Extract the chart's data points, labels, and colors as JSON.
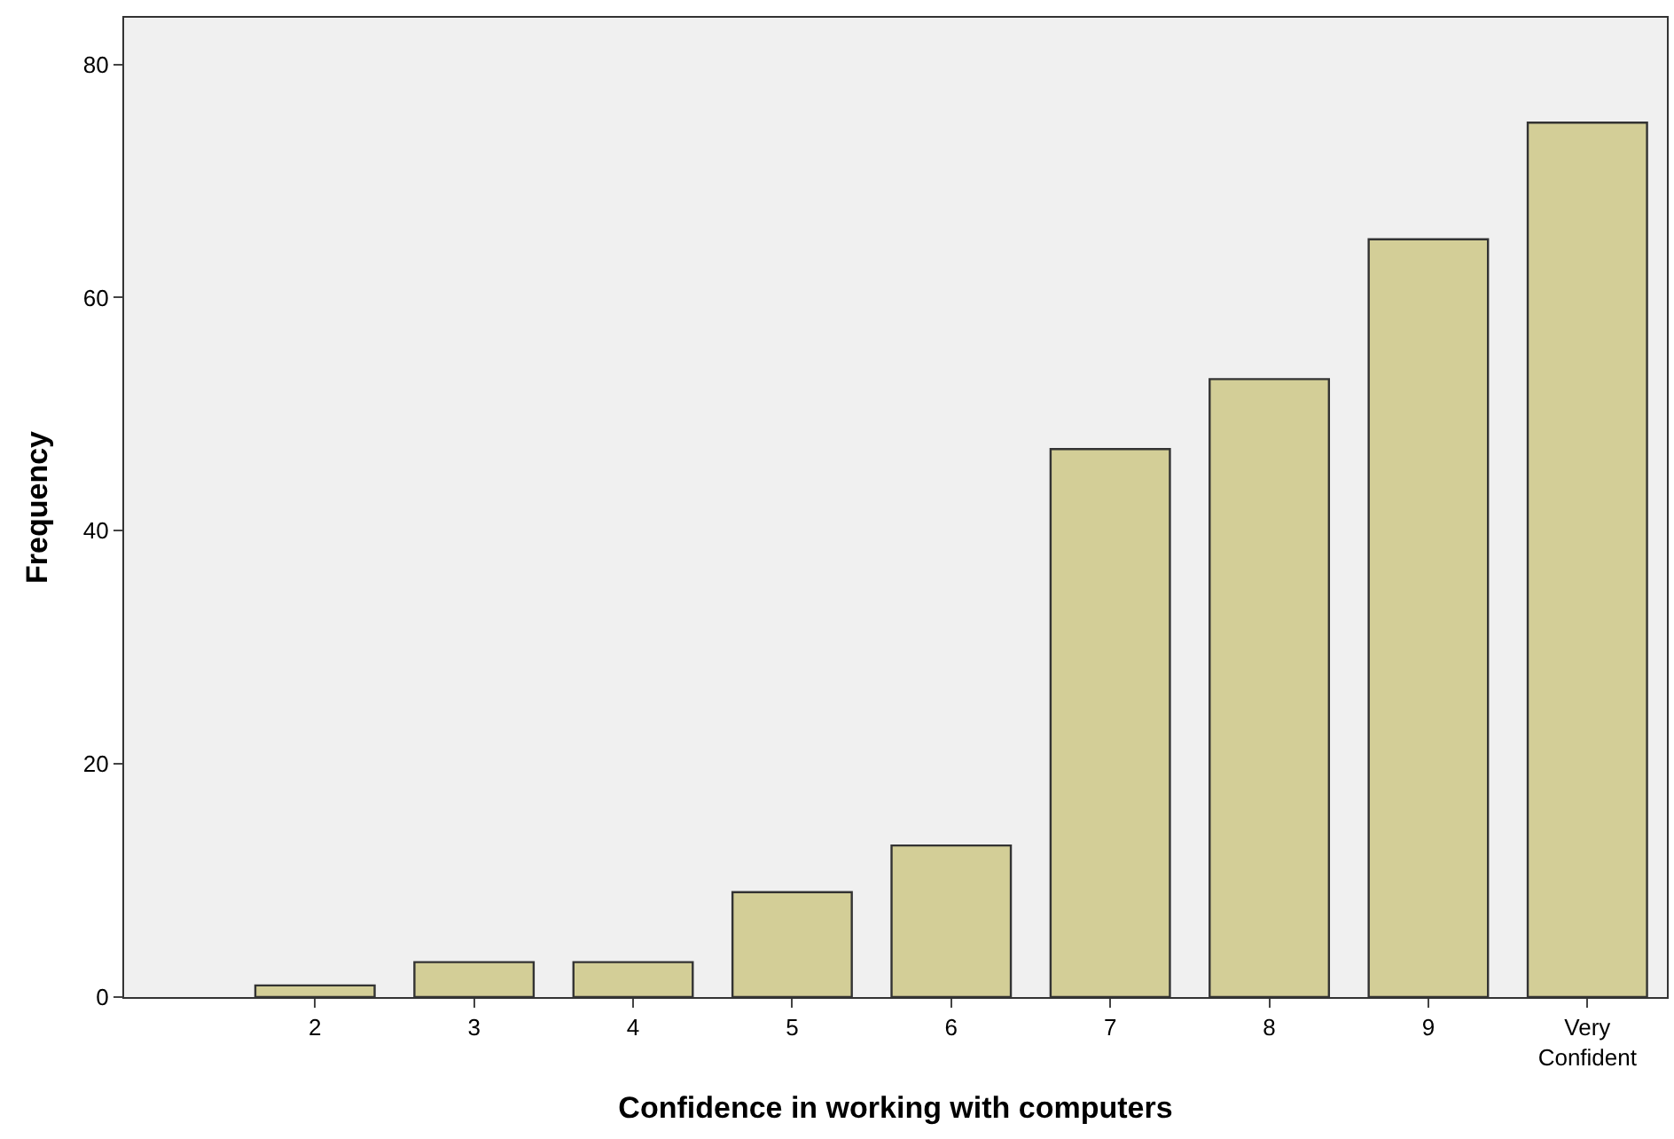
{
  "chart_data": {
    "type": "bar",
    "xlabel": "Confidence in working with computers",
    "ylabel": "Frequency",
    "categories": [
      "2",
      "3",
      "4",
      "5",
      "6",
      "7",
      "8",
      "9",
      "Very\nConfident"
    ],
    "values": [
      1,
      3,
      3,
      9,
      13,
      47,
      53,
      65,
      75
    ],
    "color": "#d3ce97",
    "ylim": [
      0,
      84
    ],
    "yticks": [
      0,
      20,
      40,
      60,
      80
    ],
    "grid": false,
    "legend": false
  }
}
